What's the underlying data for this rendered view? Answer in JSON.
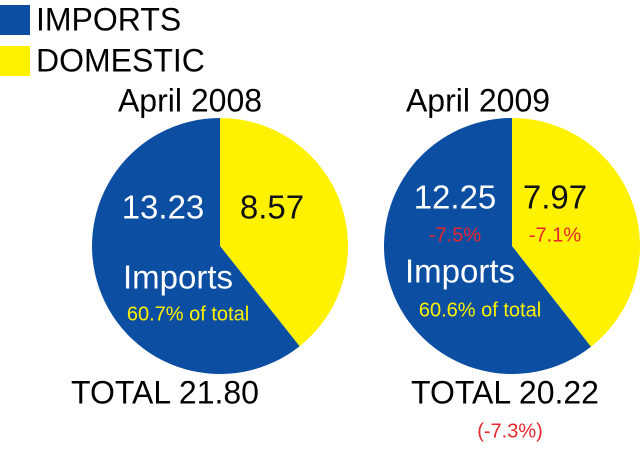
{
  "legend": [
    {
      "name": "IMPORTS",
      "color": "#0b4ea2"
    },
    {
      "name": "DOMESTIC",
      "color": "#fff200"
    }
  ],
  "chart_data": [
    {
      "type": "pie",
      "title": "April 2008",
      "values": [
        13.23,
        8.57
      ],
      "slice_label": "Imports",
      "share_label": "60.7% of total",
      "total_label": "TOTAL 21.80"
    },
    {
      "type": "pie",
      "title": "April 2009",
      "values": [
        12.25,
        7.97
      ],
      "change_labels": [
        "-7.5%",
        "-7.1%"
      ],
      "slice_label": "Imports",
      "share_label": "60.6% of total",
      "total_label": "TOTAL 20.22",
      "total_change_label": "(-7.3%)"
    }
  ]
}
